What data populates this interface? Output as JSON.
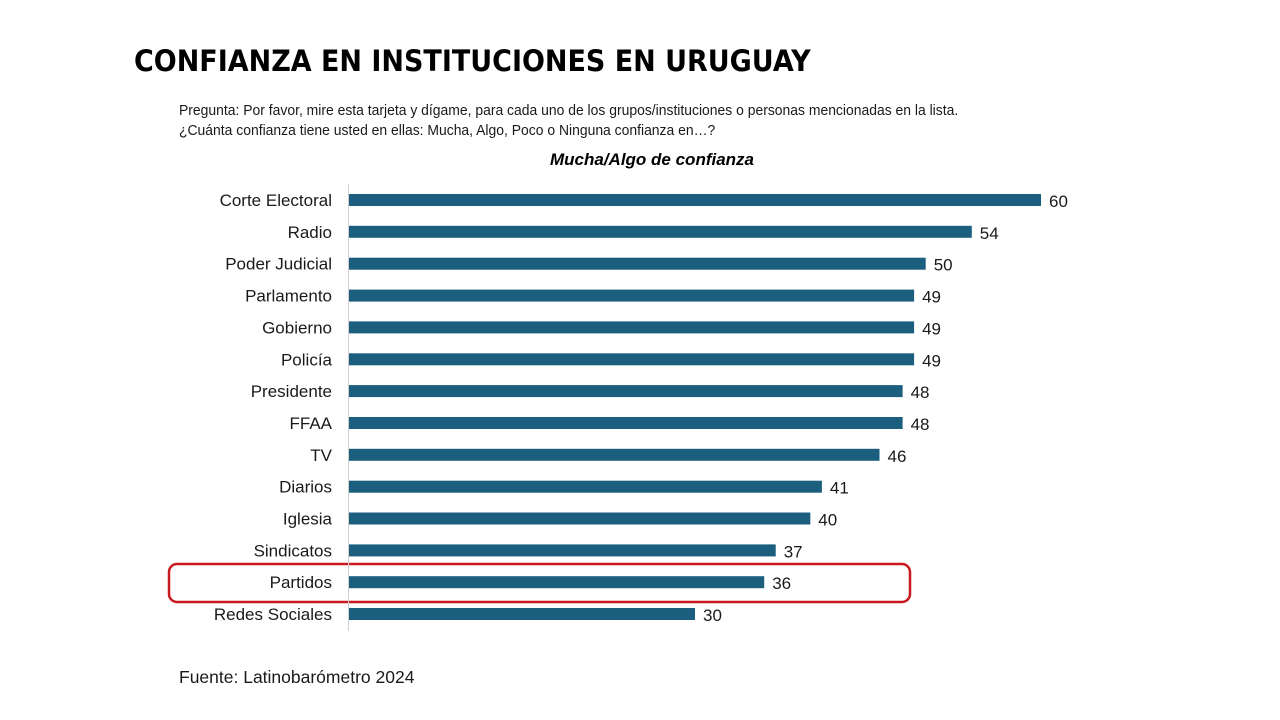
{
  "title": "CONFIANZA EN INSTITUCIONES EN URUGUAY",
  "question": {
    "line1": "Pregunta: Por favor, mire esta tarjeta y dígame, para cada uno de los grupos/instituciones o personas mencionadas en la lista.",
    "line2": "¿Cuánta confianza tiene usted en ellas: Mucha, Algo, Poco o Ninguna confianza en…?"
  },
  "source": "Fuente: Latinobarómetro 2024",
  "colors": {
    "bar": "#1b5e7e",
    "highlight": "#c8191f",
    "axis": "#d0d0d0"
  },
  "chart_data": {
    "type": "bar",
    "orientation": "horizontal",
    "title": "Mucha/Algo de confianza",
    "xlabel": "",
    "ylabel": "",
    "xlim": [
      0,
      60
    ],
    "grid": false,
    "categories": [
      "Corte Electoral",
      "Radio",
      "Poder Judicial",
      "Parlamento",
      "Gobierno",
      "Policía",
      "Presidente",
      "FFAA",
      "TV",
      "Diarios",
      "Iglesia",
      "Sindicatos",
      "Partidos",
      "Redes Sociales"
    ],
    "values": [
      60,
      54,
      50,
      49,
      49,
      49,
      48,
      48,
      46,
      41,
      40,
      37,
      36,
      30
    ],
    "data_labels": [
      "60",
      "54",
      "50",
      "49",
      "49",
      "49",
      "48",
      "48",
      "46",
      "41",
      "40",
      "37",
      "36",
      "30"
    ],
    "highlighted_category": "Partidos"
  }
}
